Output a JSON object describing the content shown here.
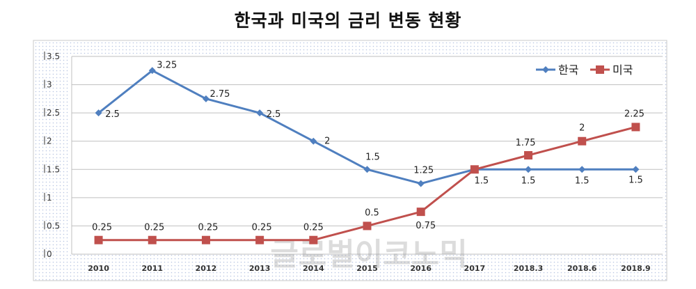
{
  "title": "한국과 미국의 금리 변동 현황",
  "watermark": "글로벌이코노믹",
  "chart_data": {
    "type": "line",
    "title": "한국과 미국의 금리 변동 현황",
    "categories": [
      "2010",
      "2011",
      "2012",
      "2013",
      "2014",
      "2015",
      "2016",
      "2017",
      "2018.3",
      "2018.6",
      "2018.9"
    ],
    "ylim": [
      0,
      3.5
    ],
    "yticks": [
      "0",
      "0.5",
      "1",
      "1.5",
      "2",
      "2.5",
      "3",
      "3.5"
    ],
    "grid": true,
    "legend": "top-right",
    "series": [
      {
        "name": "한국",
        "color": "#4f7fbf",
        "marker": "diamond",
        "values": [
          2.5,
          3.25,
          2.75,
          2.5,
          2,
          1.5,
          1.25,
          1.5,
          1.5,
          1.5,
          1.5
        ],
        "labels": [
          "2.5",
          "3.25",
          "2.75",
          "2.5",
          "2",
          "1.5",
          "1.25",
          "1.5",
          "1.5",
          "1.5",
          "1.5"
        ]
      },
      {
        "name": "미국",
        "color": "#c0504d",
        "marker": "square",
        "values": [
          0.25,
          0.25,
          0.25,
          0.25,
          0.25,
          0.5,
          0.75,
          1.5,
          1.75,
          2,
          2.25
        ],
        "labels": [
          "0.25",
          "0.25",
          "0.25",
          "0.25",
          "0.25",
          "0.5",
          "0.75",
          "",
          "1.75",
          "2",
          "2.25"
        ]
      }
    ]
  }
}
